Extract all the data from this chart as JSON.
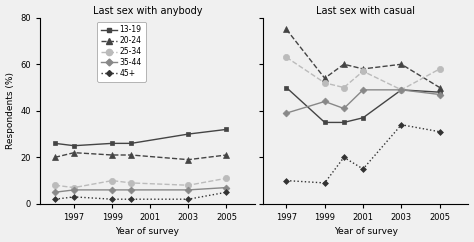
{
  "years_anybody": [
    1996,
    1997,
    1999,
    2000,
    2003,
    2005
  ],
  "years_casual": [
    1997,
    1999,
    2000,
    2001,
    2003,
    2005
  ],
  "anybody": {
    "13-19": [
      26,
      25,
      26,
      26,
      30,
      32
    ],
    "20-24": [
      20,
      22,
      21,
      21,
      19,
      21
    ],
    "25-34": [
      8,
      7,
      10,
      9,
      8,
      11
    ],
    "35-44": [
      5,
      6,
      6,
      6,
      6,
      7
    ],
    "45+": [
      2,
      3,
      2,
      2,
      2,
      5
    ]
  },
  "casual": {
    "13-19": [
      50,
      35,
      35,
      37,
      49,
      48
    ],
    "20-24": [
      75,
      54,
      60,
      58,
      60,
      50
    ],
    "25-34": [
      63,
      52,
      50,
      57,
      49,
      58
    ],
    "35-44": [
      39,
      44,
      41,
      49,
      49,
      47
    ],
    "45+": [
      10,
      9,
      20,
      15,
      34,
      31
    ]
  },
  "ylim": [
    0,
    80
  ],
  "yticks": [
    0,
    20,
    40,
    60,
    80
  ],
  "title_anybody": "Last sex with anybody",
  "title_casual": "Last sex with casual",
  "xlabel": "Year of survey",
  "ylabel": "Respondents (%)",
  "age_groups": [
    "13-19",
    "20-24",
    "25-34",
    "35-44",
    "45+"
  ],
  "background_color": "#f0f0f0",
  "xticks_anybody": [
    1997,
    1999,
    2001,
    2003,
    2005
  ],
  "xticks_casual": [
    1997,
    1999,
    2001,
    2003,
    2005
  ],
  "xlim_anybody": [
    1995.2,
    2006.5
  ],
  "xlim_casual": [
    1995.8,
    2006.5
  ]
}
